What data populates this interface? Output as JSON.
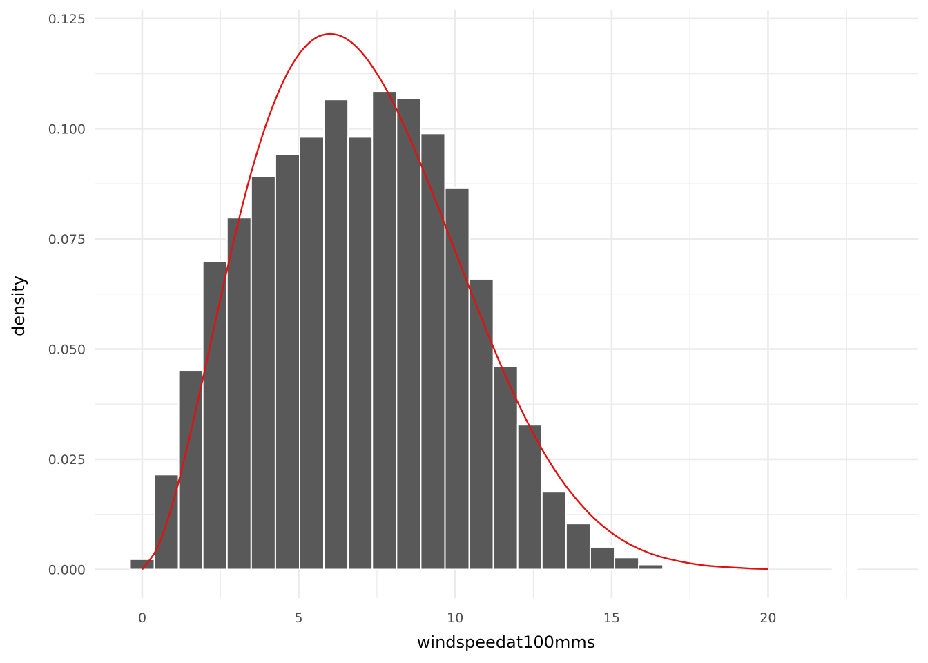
{
  "chart_data": {
    "type": "bar",
    "xlabel": "windspeedat100mms",
    "ylabel": "density",
    "xlim": [
      -1.5,
      24.8
    ],
    "ylim": [
      -0.0065,
      0.127
    ],
    "x_ticks": [
      0,
      5,
      10,
      15,
      20
    ],
    "x_tick_labels": [
      "0",
      "5",
      "10",
      "15",
      "20"
    ],
    "y_ticks": [
      0,
      0.025,
      0.05,
      0.075,
      0.1,
      0.125
    ],
    "y_tick_labels": [
      "0.000",
      "0.025",
      "0.050",
      "0.075",
      "0.100",
      "0.125"
    ],
    "grid": true,
    "bin_width": 0.774,
    "histogram": {
      "bin_centers": [
        0,
        0.774,
        1.548,
        2.322,
        3.096,
        3.87,
        4.644,
        5.418,
        6.192,
        6.966,
        7.74,
        8.514,
        9.288,
        10.062,
        10.836,
        11.61,
        12.384,
        13.158,
        13.932,
        14.706,
        15.48,
        16.254,
        17.028,
        17.802,
        18.576,
        19.35,
        20.124,
        20.898,
        21.672,
        22.446
      ],
      "values": [
        0.0023,
        0.0215,
        0.0452,
        0.0699,
        0.0798,
        0.0892,
        0.0941,
        0.0981,
        0.1066,
        0.0981,
        0.1085,
        0.1069,
        0.0989,
        0.0866,
        0.0659,
        0.0461,
        0.0328,
        0.0176,
        0.0104,
        0.0051,
        0.0027,
        0.0011,
        0.0002,
        0.0001,
        0.0001,
        0,
        0,
        0,
        0,
        0.0001
      ]
    },
    "fitted_curve": {
      "color": "#e41010",
      "x": [
        0,
        0.5,
        1,
        1.5,
        2,
        2.5,
        3,
        3.5,
        4,
        4.5,
        5,
        5.5,
        6,
        6.5,
        7,
        7.5,
        8,
        8.5,
        9,
        9.5,
        10,
        10.5,
        11,
        11.5,
        12,
        12.5,
        13,
        13.5,
        14,
        14.5,
        15,
        15.5,
        16,
        16.5,
        17,
        17.5,
        18,
        18.5,
        19,
        19.5,
        20
      ],
      "y": [
        0,
        0.0052,
        0.0156,
        0.0296,
        0.0453,
        0.0614,
        0.0768,
        0.0905,
        0.1018,
        0.1106,
        0.1168,
        0.1204,
        0.1215,
        0.1205,
        0.1174,
        0.1125,
        0.1062,
        0.0986,
        0.0903,
        0.0814,
        0.0722,
        0.0631,
        0.0542,
        0.0457,
        0.0379,
        0.0308,
        0.0246,
        0.0193,
        0.0149,
        0.0112,
        0.0083,
        0.006,
        0.0043,
        0.003,
        0.0021,
        0.0014,
        0.0009,
        0.0006,
        0.0004,
        0.0002,
        0.0001
      ]
    }
  }
}
